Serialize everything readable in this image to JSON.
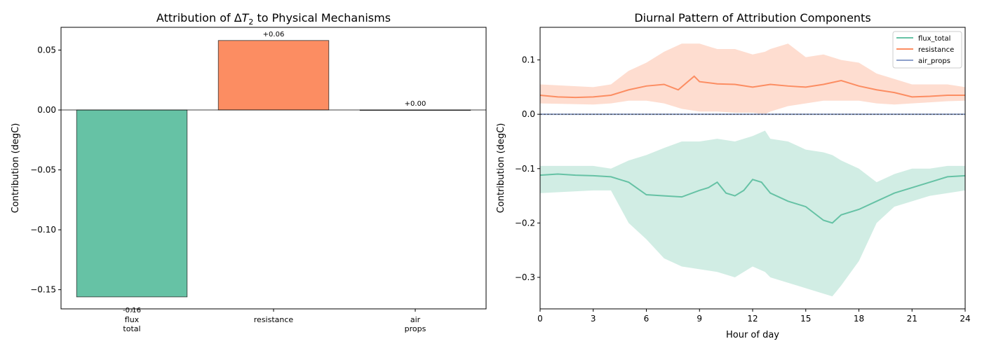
{
  "chart_data": [
    {
      "type": "bar",
      "title": "Attribution of ΔT₂ to Physical Mechanisms",
      "title_parts": {
        "prefix": "Attribution of Δ",
        "var": "T",
        "sub": "2",
        "suffix": " to Physical Mechanisms"
      },
      "ylabel": "Contribution (degC)",
      "xlabel": "",
      "categories": [
        [
          "flux",
          "total"
        ],
        [
          "resistance"
        ],
        [
          "air",
          "props"
        ]
      ],
      "values": [
        -0.156,
        0.058,
        0.0
      ],
      "data_labels": [
        "-0.16",
        "+0.06",
        "+0.00"
      ],
      "colors": [
        "#66c2a5",
        "#fc8d62",
        "#8da0cb"
      ],
      "ylim": [
        -0.166,
        0.069
      ],
      "yticks": [
        -0.15,
        -0.1,
        -0.05,
        0.0,
        0.05
      ],
      "ytick_labels": [
        "−0.15",
        "−0.10",
        "−0.05",
        "0.00",
        "0.05"
      ],
      "grid": false
    },
    {
      "type": "line",
      "title": "Diurnal Pattern of Attribution Components",
      "xlabel": "Hour of day",
      "ylabel": "Contribution (degC)",
      "xlim": [
        0,
        24
      ],
      "ylim": [
        -0.358,
        0.16
      ],
      "xticks": [
        0,
        3,
        6,
        9,
        12,
        15,
        18,
        21,
        24
      ],
      "xtick_labels": [
        "0",
        "3",
        "6",
        "9",
        "12",
        "15",
        "18",
        "21",
        "24"
      ],
      "yticks": [
        -0.3,
        -0.2,
        -0.1,
        0.0,
        0.1
      ],
      "ytick_labels": [
        "−0.3",
        "−0.2",
        "−0.1",
        "0.0",
        "0.1"
      ],
      "legend": {
        "position": "top-right",
        "entries": [
          "flux_total",
          "resistance",
          "air_props"
        ]
      },
      "grid": false,
      "series": [
        {
          "name": "flux_total",
          "color": "#66c2a5",
          "x": [
            0,
            1,
            2,
            3,
            4,
            5,
            6,
            7,
            8,
            9,
            9.5,
            10,
            10.5,
            11,
            11.5,
            12,
            12.5,
            13,
            14,
            15,
            16,
            16.5,
            17,
            18,
            19,
            20,
            21,
            22,
            23,
            24
          ],
          "y": [
            -0.112,
            -0.11,
            -0.112,
            -0.113,
            -0.115,
            -0.125,
            -0.148,
            -0.15,
            -0.152,
            -0.14,
            -0.135,
            -0.125,
            -0.145,
            -0.15,
            -0.14,
            -0.12,
            -0.125,
            -0.145,
            -0.16,
            -0.17,
            -0.195,
            -0.2,
            -0.185,
            -0.175,
            -0.16,
            -0.145,
            -0.135,
            -0.125,
            -0.115,
            -0.113
          ],
          "band_x": [
            0,
            3,
            4,
            5,
            6,
            7,
            8,
            9,
            10,
            11,
            12,
            12.7,
            13,
            14,
            15,
            16,
            16.5,
            17,
            18,
            19,
            20,
            21,
            22,
            23,
            24
          ],
          "band_upper": [
            -0.095,
            -0.095,
            -0.1,
            -0.085,
            -0.075,
            -0.062,
            -0.05,
            -0.05,
            -0.045,
            -0.05,
            -0.04,
            -0.03,
            -0.045,
            -0.05,
            -0.065,
            -0.07,
            -0.075,
            -0.085,
            -0.1,
            -0.125,
            -0.11,
            -0.1,
            -0.1,
            -0.095,
            -0.095
          ],
          "band_lower": [
            -0.145,
            -0.14,
            -0.14,
            -0.2,
            -0.23,
            -0.265,
            -0.28,
            -0.285,
            -0.29,
            -0.3,
            -0.28,
            -0.29,
            -0.3,
            -0.31,
            -0.32,
            -0.33,
            -0.335,
            -0.315,
            -0.27,
            -0.2,
            -0.17,
            -0.16,
            -0.15,
            -0.145,
            -0.14
          ]
        },
        {
          "name": "resistance",
          "color": "#fc8d62",
          "x": [
            0,
            1,
            2,
            3,
            4,
            5,
            6,
            7,
            7.8,
            8.7,
            9,
            10,
            11,
            12,
            13,
            14,
            15,
            16,
            17,
            18,
            19,
            20,
            21,
            22,
            23,
            24
          ],
          "y": [
            0.035,
            0.032,
            0.031,
            0.032,
            0.035,
            0.045,
            0.052,
            0.055,
            0.045,
            0.07,
            0.06,
            0.056,
            0.055,
            0.05,
            0.055,
            0.052,
            0.05,
            0.055,
            0.062,
            0.052,
            0.045,
            0.04,
            0.032,
            0.033,
            0.035,
            0.035
          ],
          "band_x": [
            0,
            3,
            4,
            5,
            6,
            7,
            8,
            9,
            10,
            11,
            12,
            12.7,
            13,
            14,
            15,
            16,
            17,
            18,
            19,
            20,
            21,
            22,
            23,
            24
          ],
          "band_upper": [
            0.055,
            0.05,
            0.055,
            0.08,
            0.095,
            0.115,
            0.13,
            0.13,
            0.12,
            0.12,
            0.11,
            0.115,
            0.12,
            0.13,
            0.105,
            0.11,
            0.1,
            0.095,
            0.075,
            0.065,
            0.055,
            0.055,
            0.055,
            0.05
          ],
          "band_lower": [
            0.02,
            0.018,
            0.02,
            0.025,
            0.025,
            0.02,
            0.01,
            0.005,
            0.005,
            0.003,
            0.003,
            0,
            0.005,
            0.015,
            0.02,
            0.025,
            0.025,
            0.025,
            0.02,
            0.018,
            0.02,
            0.022,
            0.024,
            0.025
          ]
        },
        {
          "name": "air_props",
          "color": "#8da0cb",
          "x": [
            0,
            24
          ],
          "y": [
            0,
            0
          ]
        }
      ]
    }
  ]
}
